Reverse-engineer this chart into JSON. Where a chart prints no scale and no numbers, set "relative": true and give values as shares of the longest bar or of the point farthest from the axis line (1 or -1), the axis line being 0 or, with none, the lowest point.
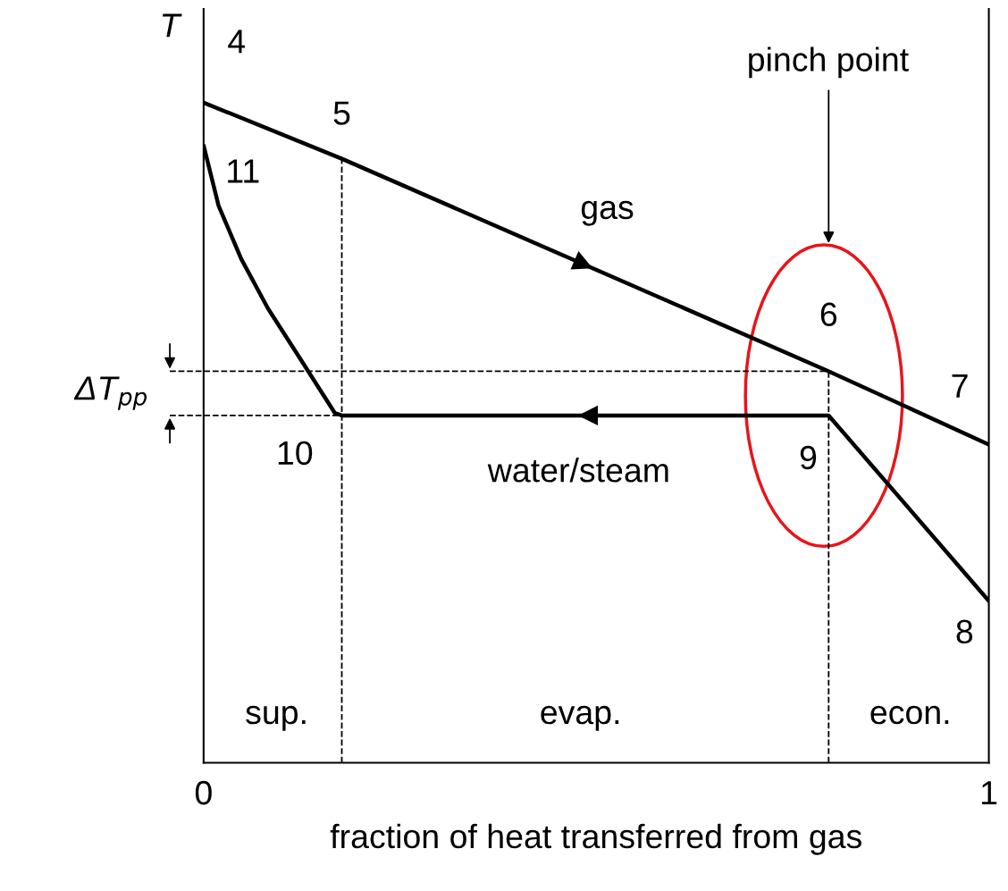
{
  "chart_data": {
    "type": "line",
    "relative": true,
    "xlabel": "fraction of heat transferred from gas",
    "ylabel": "T",
    "xlim": [
      0,
      1
    ],
    "xticks": [
      0,
      1
    ],
    "legend": false,
    "marker": "none",
    "line_style": "solid",
    "series": [
      {
        "color": "#000000",
        "x": [
          0,
          0.176,
          0.796,
          1
        ],
        "values": [
          1.0,
          0.915,
          0.593,
          0.482
        ]
      },
      {
        "color": "#000000",
        "x": [
          1,
          0.796,
          0.176,
          0.167,
          0.122,
          0.082,
          0.048,
          0.019,
          0
        ],
        "values": [
          0.245,
          0.526,
          0.526,
          0.53,
          0.614,
          0.688,
          0.763,
          0.844,
          0.935
        ]
      }
    ],
    "ref_lines": [
      {
        "axis": "x",
        "value": 0.176,
        "line_style": "dashed",
        "color": "#000000"
      },
      {
        "axis": "x",
        "value": 0.796,
        "line_style": "dashed",
        "color": "#000000"
      },
      {
        "axis": "y",
        "value": 0.593,
        "line_style": "dashed",
        "color": "#000000"
      },
      {
        "axis": "y",
        "value": 0.526,
        "line_style": "dashed",
        "color": "#000000"
      }
    ],
    "annotations": [
      "4",
      "5",
      "11",
      "gas",
      "6",
      "7",
      "10",
      "9",
      "water/steam",
      "8",
      "sup.",
      "evap.",
      "econ.",
      "pinch point",
      "ΔT$_{pp}$"
    ]
  }
}
